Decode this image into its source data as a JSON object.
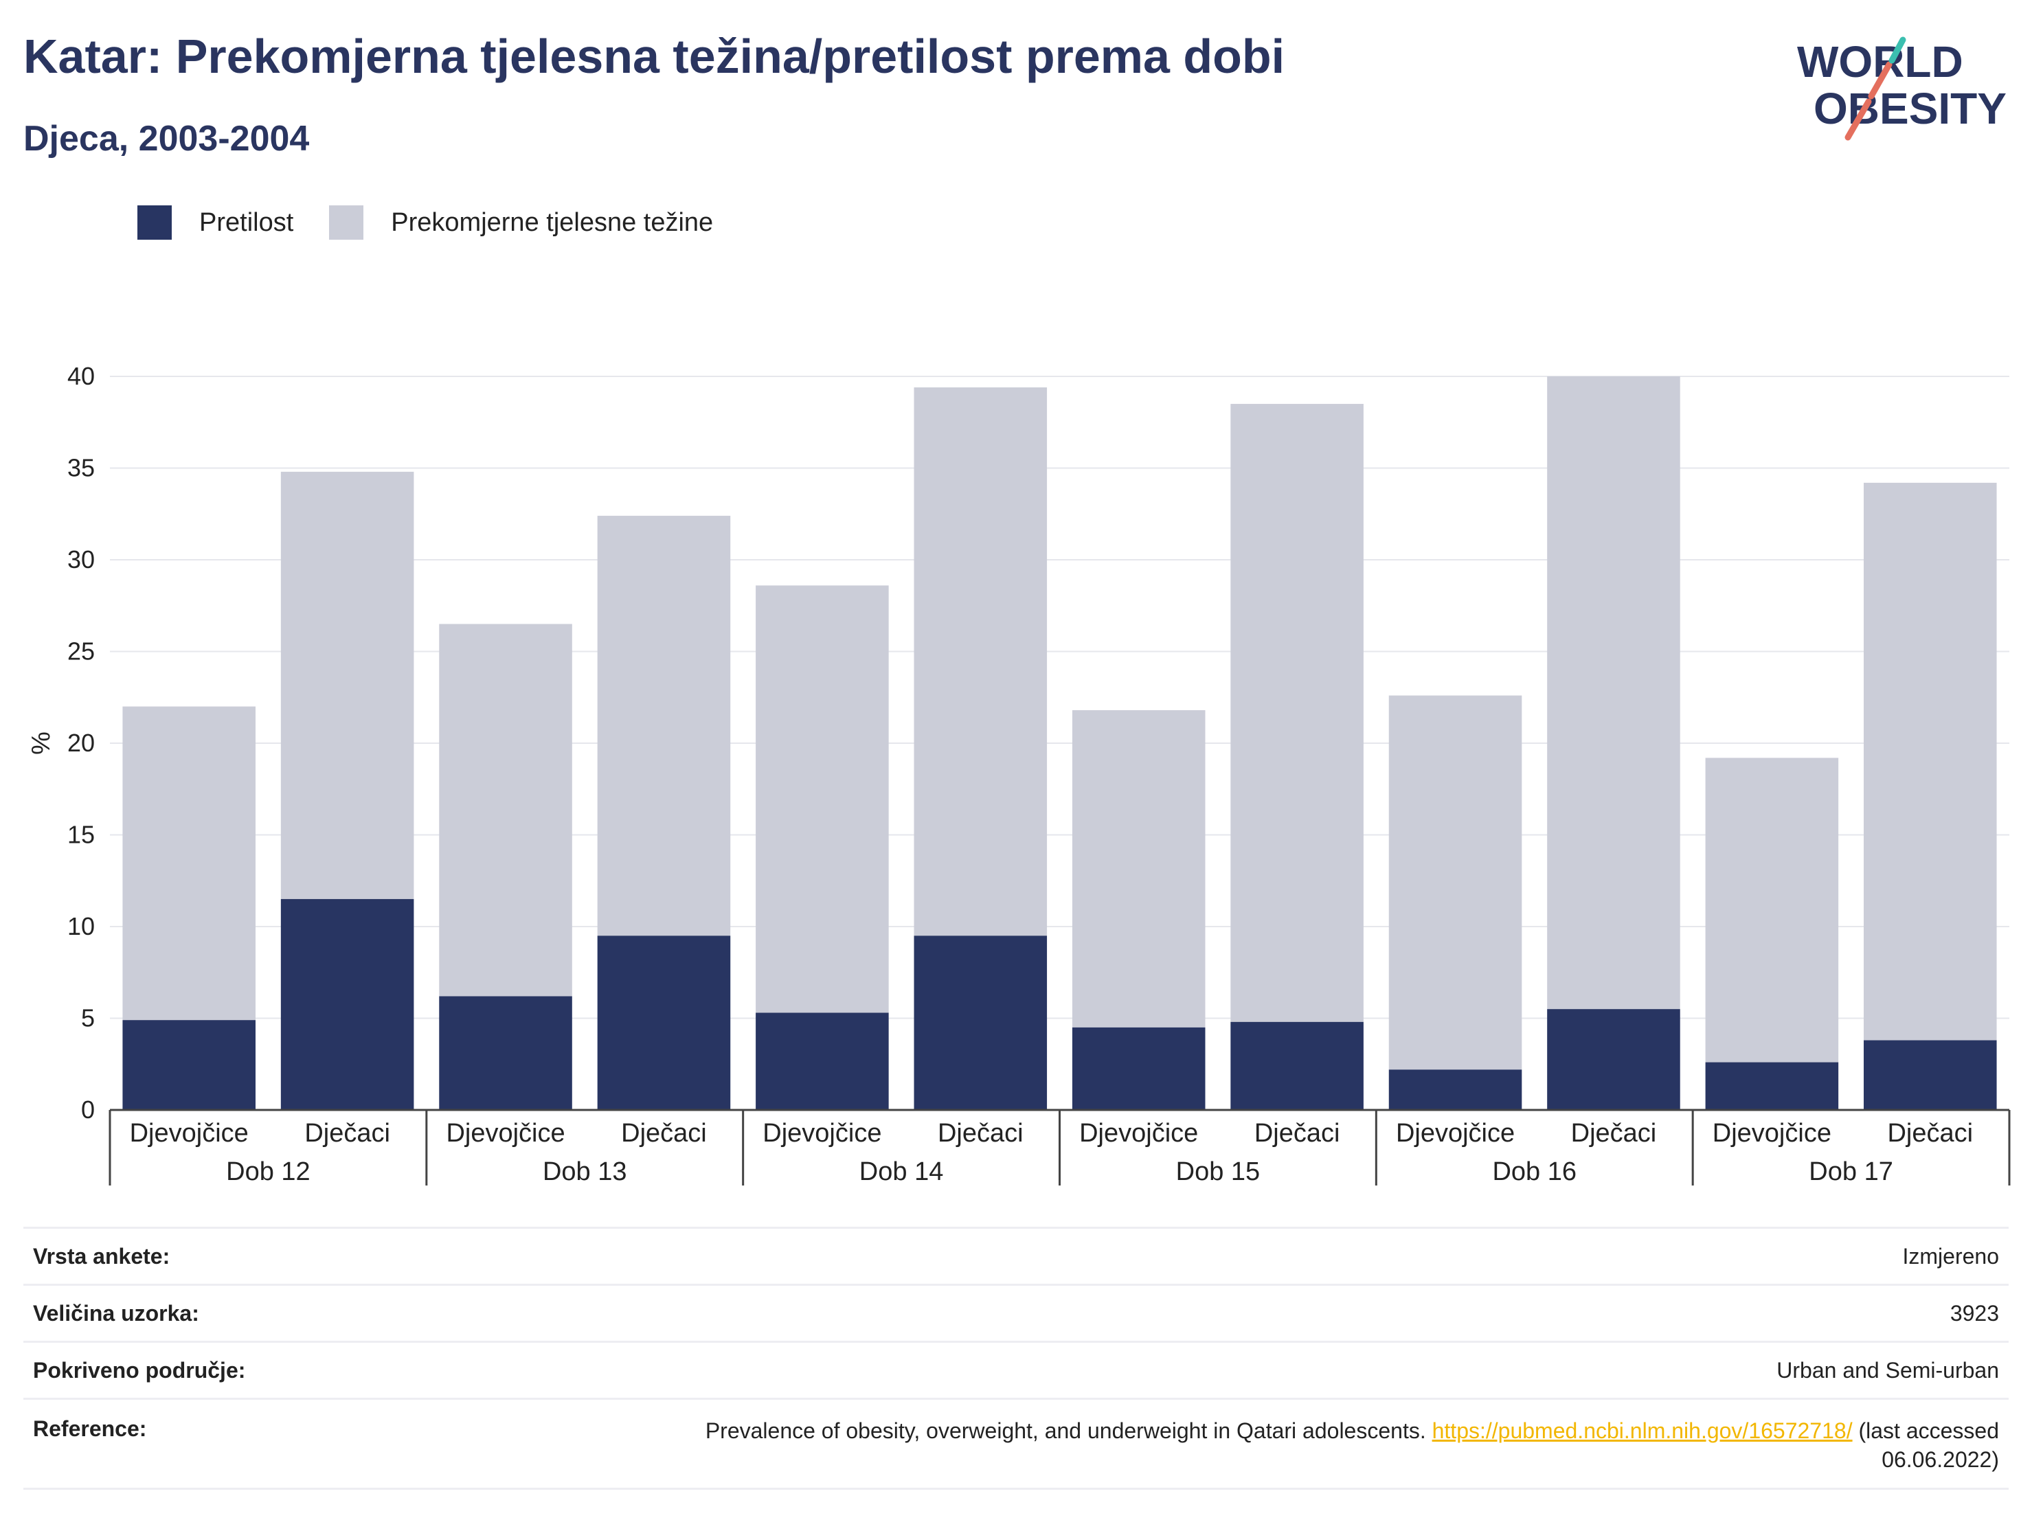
{
  "header": {
    "title": "Katar: Prekomjerna tjelesna težina/pretilost prema dobi",
    "subtitle": "Djeca, 2003-2004"
  },
  "logo": {
    "line1": "WORLD",
    "line2": "OBESITY"
  },
  "legend": [
    {
      "label": "Pretilost",
      "color": "#283562"
    },
    {
      "label": "Prekomjerne tjelesne težine",
      "color": "#cbcdd8"
    }
  ],
  "chart_data": {
    "type": "bar",
    "stacked": true,
    "ylabel": "%",
    "ylim": [
      0,
      40
    ],
    "yticks": [
      0,
      5,
      10,
      15,
      20,
      25,
      30,
      35,
      40
    ],
    "grid": true,
    "legend_position": "top-left",
    "groups": [
      "Dob 12",
      "Dob 13",
      "Dob 14",
      "Dob 15",
      "Dob 16",
      "Dob 17"
    ],
    "categories": [
      "Djevojčice",
      "Dječaci",
      "Djevojčice",
      "Dječaci",
      "Djevojčice",
      "Dječaci",
      "Djevojčice",
      "Dječaci",
      "Djevojčice",
      "Dječaci",
      "Djevojčice",
      "Dječaci"
    ],
    "series": [
      {
        "name": "Pretilost",
        "color": "#283562",
        "values": [
          4.9,
          11.5,
          6.2,
          9.5,
          5.3,
          9.5,
          4.5,
          4.8,
          2.2,
          5.5,
          2.6,
          3.8
        ]
      },
      {
        "name": "Prekomjerne tjelesne težine",
        "color": "#cbcdd8",
        "values": [
          17.1,
          23.3,
          20.3,
          22.9,
          23.3,
          29.9,
          17.3,
          33.7,
          20.4,
          34.5,
          16.6,
          30.4
        ]
      }
    ]
  },
  "info": {
    "survey_type": {
      "label": "Vrsta ankete:",
      "value": "Izmjereno"
    },
    "sample_size": {
      "label": "Veličina uzorka:",
      "value": "3923"
    },
    "coverage": {
      "label": "Pokriveno područje:",
      "value": "Urban and Semi-urban"
    },
    "reference": {
      "label": "Reference:",
      "text": "Prevalence of obesity, overweight, and underweight in Qatari adolescents.",
      "link": "https://pubmed.ncbi.nlm.nih.gov/16572718/",
      "suffix": "(last accessed 06.06.2022)"
    }
  }
}
